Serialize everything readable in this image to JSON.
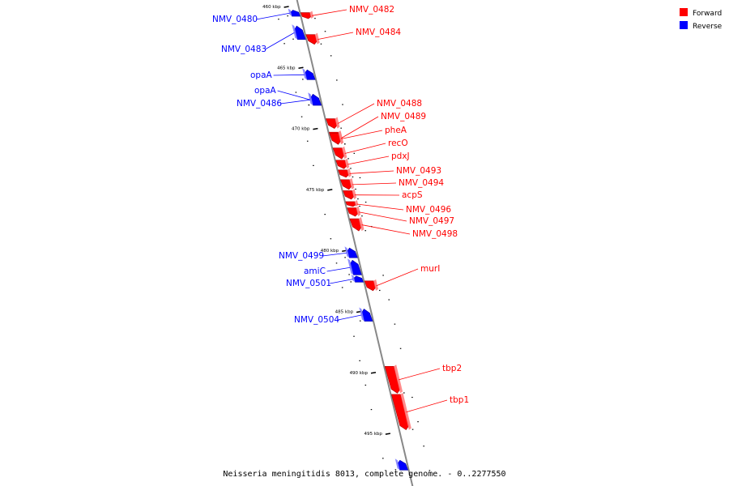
{
  "colors": {
    "forward": "#ff0000",
    "reverse": "#0000ff",
    "backbone": "#888888"
  },
  "legend": {
    "forward_label": "Forward",
    "reverse_label": "Reverse"
  },
  "caption": "Neisseria meningitidis 8013, complete genome. - 0..2277550",
  "map": {
    "unit": "kbp",
    "start_kbp": 459.3,
    "end_kbp": 498.0,
    "major_ticks": [
      {
        "kbp": 460,
        "label": "460 kbp"
      },
      {
        "kbp": 465,
        "label": "465 kbp"
      },
      {
        "kbp": 470,
        "label": "470 kbp"
      },
      {
        "kbp": 475,
        "label": "475 kbp"
      },
      {
        "kbp": 480,
        "label": "480 kbp"
      },
      {
        "kbp": 485,
        "label": "485 kbp"
      },
      {
        "kbp": 490,
        "label": "490 kbp"
      },
      {
        "kbp": 495,
        "label": "495 kbp"
      }
    ]
  },
  "genes": [
    {
      "name": "NMV_0480",
      "strand": "reverse",
      "start_kbp": 460.3,
      "end_kbp": 460.8
    },
    {
      "name": "NMV_0482",
      "strand": "forward",
      "start_kbp": 460.5,
      "end_kbp": 461.0
    },
    {
      "name": "NMV_0483",
      "strand": "reverse",
      "start_kbp": 461.6,
      "end_kbp": 462.7
    },
    {
      "name": "NMV_0484",
      "strand": "forward",
      "start_kbp": 462.3,
      "end_kbp": 463.1
    },
    {
      "name": "opaA",
      "strand": "reverse",
      "start_kbp": 465.2,
      "end_kbp": 466.0
    },
    {
      "name": "opaA",
      "strand": "reverse",
      "start_kbp": 467.2,
      "end_kbp": 468.1
    },
    {
      "name": "NMV_0486",
      "strand": "reverse",
      "start_kbp": 467.2,
      "end_kbp": 468.1
    },
    {
      "name": "NMV_0488",
      "strand": "forward",
      "start_kbp": 469.2,
      "end_kbp": 470.0
    },
    {
      "name": "NMV_0489",
      "strand": "forward",
      "start_kbp": 470.3,
      "end_kbp": 471.3
    },
    {
      "name": "pheA",
      "strand": "forward",
      "start_kbp": 470.4,
      "end_kbp": 471.3
    },
    {
      "name": "recO",
      "strand": "forward",
      "start_kbp": 471.6,
      "end_kbp": 472.5
    },
    {
      "name": "pdxJ",
      "strand": "forward",
      "start_kbp": 472.6,
      "end_kbp": 473.3
    },
    {
      "name": "NMV_0493",
      "strand": "forward",
      "start_kbp": 473.4,
      "end_kbp": 474.0
    },
    {
      "name": "NMV_0494",
      "strand": "forward",
      "start_kbp": 474.2,
      "end_kbp": 475.0
    },
    {
      "name": "acpS",
      "strand": "forward",
      "start_kbp": 475.1,
      "end_kbp": 475.8
    },
    {
      "name": "NMV_0496",
      "strand": "forward",
      "start_kbp": 476.0,
      "end_kbp": 476.4
    },
    {
      "name": "NMV_0497",
      "strand": "forward",
      "start_kbp": 476.5,
      "end_kbp": 477.2
    },
    {
      "name": "NMV_0498",
      "strand": "forward",
      "start_kbp": 477.4,
      "end_kbp": 478.4
    },
    {
      "name": "NMV_0499",
      "strand": "reverse",
      "start_kbp": 479.8,
      "end_kbp": 480.6
    },
    {
      "name": "amiC",
      "strand": "reverse",
      "start_kbp": 480.8,
      "end_kbp": 482.0
    },
    {
      "name": "NMV_0501",
      "strand": "reverse",
      "start_kbp": 482.1,
      "end_kbp": 482.6
    },
    {
      "name": "murI",
      "strand": "forward",
      "start_kbp": 482.5,
      "end_kbp": 483.3
    },
    {
      "name": "NMV_0504",
      "strand": "reverse",
      "start_kbp": 484.8,
      "end_kbp": 485.8
    },
    {
      "name": "tbp2",
      "strand": "forward",
      "start_kbp": 489.5,
      "end_kbp": 491.7
    },
    {
      "name": "tbp1",
      "strand": "forward",
      "start_kbp": 491.8,
      "end_kbp": 494.7
    },
    {
      "name": "",
      "strand": "reverse",
      "start_kbp": 497.2,
      "end_kbp": 498.0
    }
  ]
}
